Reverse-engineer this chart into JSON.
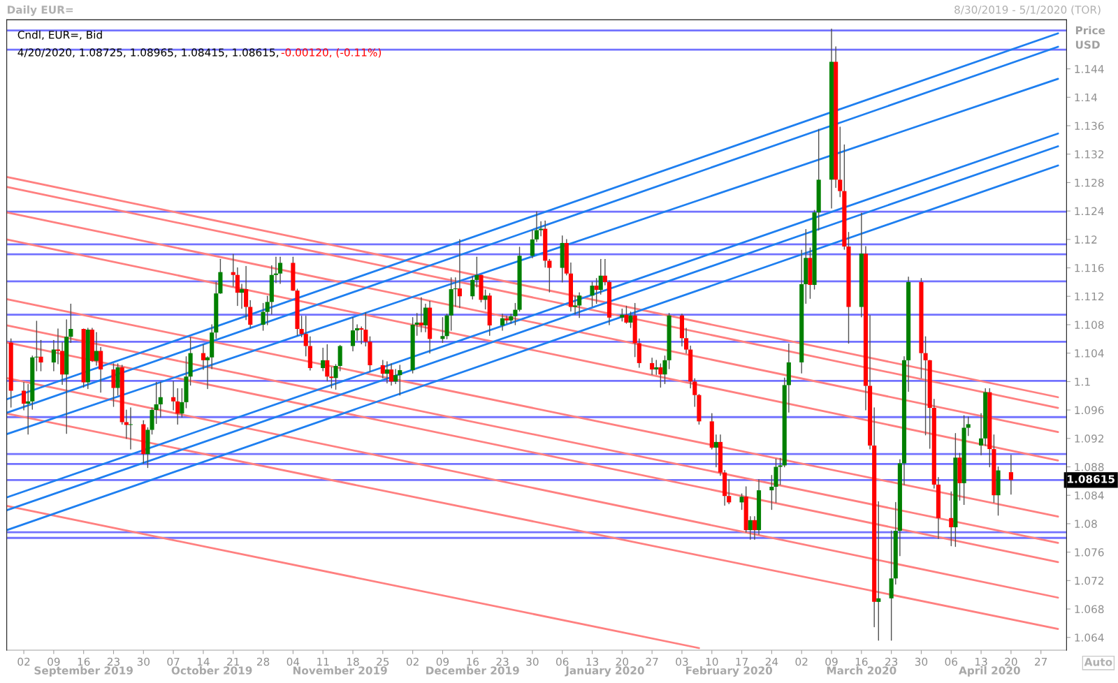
{
  "chart_data": {
    "type": "candlestick",
    "title": "Daily EUR=",
    "subtitle": "8/30/2019 - 5/1/2020 (TOR)",
    "ylabel": "Price\nUSD",
    "annotations": [
      "Cndl, EUR=, Bid",
      "4/20/2020, 1.08725, 1.08965, 1.08415, 1.08615, ",
      "-0.00120, (-0.11%)",
      "Auto"
    ],
    "x": [
      "2019-08-30",
      "2019-09-02",
      "2019-09-03",
      "2019-09-04",
      "2019-09-05",
      "2019-09-06",
      "2019-09-09",
      "2019-09-10",
      "2019-09-11",
      "2019-09-12",
      "2019-09-13",
      "2019-09-16",
      "2019-09-17",
      "2019-09-18",
      "2019-09-19",
      "2019-09-20",
      "2019-09-23",
      "2019-09-24",
      "2019-09-25",
      "2019-09-26",
      "2019-09-27",
      "2019-09-30",
      "2019-10-01",
      "2019-10-02",
      "2019-10-03",
      "2019-10-04",
      "2019-10-07",
      "2019-10-08",
      "2019-10-09",
      "2019-10-10",
      "2019-10-11",
      "2019-10-14",
      "2019-10-15",
      "2019-10-16",
      "2019-10-17",
      "2019-10-18",
      "2019-10-21",
      "2019-10-22",
      "2019-10-23",
      "2019-10-24",
      "2019-10-25",
      "2019-10-28",
      "2019-10-29",
      "2019-10-30",
      "2019-10-31",
      "2019-11-01",
      "2019-11-04",
      "2019-11-05",
      "2019-11-06",
      "2019-11-07",
      "2019-11-08",
      "2019-11-11",
      "2019-11-12",
      "2019-11-13",
      "2019-11-14",
      "2019-11-15",
      "2019-11-18",
      "2019-11-19",
      "2019-11-20",
      "2019-11-21",
      "2019-11-22",
      "2019-11-25",
      "2019-11-26",
      "2019-11-27",
      "2019-11-28",
      "2019-11-29",
      "2019-12-02",
      "2019-12-03",
      "2019-12-04",
      "2019-12-05",
      "2019-12-06",
      "2019-12-09",
      "2019-12-10",
      "2019-12-11",
      "2019-12-12",
      "2019-12-13",
      "2019-12-16",
      "2019-12-17",
      "2019-12-18",
      "2019-12-19",
      "2019-12-20",
      "2019-12-23",
      "2019-12-24",
      "2019-12-25",
      "2019-12-26",
      "2019-12-27",
      "2019-12-30",
      "2019-12-31",
      "2020-01-01",
      "2020-01-02",
      "2020-01-03",
      "2020-01-06",
      "2020-01-07",
      "2020-01-08",
      "2020-01-09",
      "2020-01-10",
      "2020-01-13",
      "2020-01-14",
      "2020-01-15",
      "2020-01-16",
      "2020-01-17",
      "2020-01-20",
      "2020-01-21",
      "2020-01-22",
      "2020-01-23",
      "2020-01-24",
      "2020-01-27",
      "2020-01-28",
      "2020-01-29",
      "2020-01-30",
      "2020-01-31",
      "2020-02-03",
      "2020-02-04",
      "2020-02-05",
      "2020-02-06",
      "2020-02-07",
      "2020-02-10",
      "2020-02-11",
      "2020-02-12",
      "2020-02-13",
      "2020-02-14",
      "2020-02-17",
      "2020-02-18",
      "2020-02-19",
      "2020-02-20",
      "2020-02-21",
      "2020-02-24",
      "2020-02-25",
      "2020-02-26",
      "2020-02-27",
      "2020-02-28",
      "2020-03-02",
      "2020-03-03",
      "2020-03-04",
      "2020-03-05",
      "2020-03-06",
      "2020-03-09",
      "2020-03-10",
      "2020-03-11",
      "2020-03-12",
      "2020-03-13",
      "2020-03-16",
      "2020-03-17",
      "2020-03-18",
      "2020-03-19",
      "2020-03-20",
      "2020-03-23",
      "2020-03-24",
      "2020-03-25",
      "2020-03-26",
      "2020-03-27",
      "2020-03-30",
      "2020-03-31",
      "2020-04-01",
      "2020-04-02",
      "2020-04-03",
      "2020-04-06",
      "2020-04-07",
      "2020-04-08",
      "2020-04-09",
      "2020-04-10",
      "2020-04-13",
      "2020-04-14",
      "2020-04-15",
      "2020-04-16",
      "2020-04-17",
      "2020-04-20"
    ],
    "ohlc": [
      [
        1.1055,
        1.106,
        1.0964,
        1.0987
      ],
      [
        1.0987,
        1.0999,
        1.096,
        1.0969
      ],
      [
        1.0969,
        1.0996,
        1.0926,
        1.0972
      ],
      [
        1.0972,
        1.1036,
        1.0961,
        1.1034
      ],
      [
        1.1034,
        1.1085,
        1.1015,
        1.1035
      ],
      [
        1.1035,
        1.1058,
        1.1015,
        1.1027
      ],
      [
        1.1027,
        1.1058,
        1.1015,
        1.1045
      ],
      [
        1.1045,
        1.1074,
        1.1025,
        1.1043
      ],
      [
        1.1043,
        1.1055,
        1.0996,
        1.101
      ],
      [
        1.101,
        1.1087,
        1.0927,
        1.1063
      ],
      [
        1.1063,
        1.1109,
        1.1055,
        1.1074
      ],
      [
        1.1074,
        1.1074,
        1.0992,
        1.0999
      ],
      [
        1.0999,
        1.1075,
        1.099,
        1.1073
      ],
      [
        1.1073,
        1.1075,
        1.1028,
        1.1029
      ],
      [
        1.1029,
        1.1069,
        1.1023,
        1.1043
      ],
      [
        1.1043,
        1.1048,
        1.0985,
        1.1017
      ],
      [
        1.1017,
        1.1025,
        1.0965,
        1.0991
      ],
      [
        1.0991,
        1.1025,
        1.0981,
        1.102
      ],
      [
        1.102,
        1.1023,
        1.094,
        1.0943
      ],
      [
        1.0943,
        1.096,
        1.092,
        1.0939
      ],
      [
        1.0939,
        1.0963,
        1.0905,
        1.094
      ],
      [
        1.094,
        1.0945,
        1.0885,
        1.0898
      ],
      [
        1.0898,
        1.0935,
        1.0879,
        1.0932
      ],
      [
        1.0932,
        1.0963,
        1.0926,
        1.096
      ],
      [
        1.096,
        1.0999,
        1.0941,
        1.0968
      ],
      [
        1.0968,
        1.0999,
        1.095,
        1.0978
      ],
      [
        1.0978,
        1.1,
        1.096,
        1.0972
      ],
      [
        1.0972,
        1.099,
        1.094,
        1.0955
      ],
      [
        1.0955,
        1.099,
        1.095,
        1.0971
      ],
      [
        1.0971,
        1.1035,
        1.0963,
        1.1007
      ],
      [
        1.1007,
        1.1062,
        1.0995,
        1.104
      ],
      [
        1.104,
        1.1052,
        1.1017,
        1.103
      ],
      [
        1.103,
        1.1035,
        1.099,
        1.1034
      ],
      [
        1.1034,
        1.108,
        1.1018,
        1.1069
      ],
      [
        1.1069,
        1.114,
        1.1061,
        1.1124
      ],
      [
        1.1124,
        1.1172,
        1.1124,
        1.1154
      ],
      [
        1.1154,
        1.1179,
        1.1134,
        1.115
      ],
      [
        1.115,
        1.116,
        1.1107,
        1.1125
      ],
      [
        1.1125,
        1.1137,
        1.1103,
        1.113
      ],
      [
        1.113,
        1.1162,
        1.1087,
        1.1105
      ],
      [
        1.1105,
        1.1114,
        1.1075,
        1.108
      ],
      [
        1.108,
        1.111,
        1.1072,
        1.1098
      ],
      [
        1.1098,
        1.112,
        1.108,
        1.1112
      ],
      [
        1.1112,
        1.1163,
        1.1095,
        1.115
      ],
      [
        1.115,
        1.1175,
        1.1139,
        1.1152
      ],
      [
        1.1152,
        1.1175,
        1.1138,
        1.1167
      ],
      [
        1.1167,
        1.1175,
        1.1128,
        1.1128
      ],
      [
        1.1128,
        1.113,
        1.1065,
        1.1074
      ],
      [
        1.1074,
        1.1092,
        1.1063,
        1.1067
      ],
      [
        1.1067,
        1.1092,
        1.1036,
        1.105
      ],
      [
        1.105,
        1.1063,
        1.1016,
        1.1019
      ],
      [
        1.1019,
        1.1047,
        1.1015,
        1.103
      ],
      [
        1.103,
        1.1052,
        1.1001,
        1.1007
      ],
      [
        1.1007,
        1.102,
        1.0991,
        1.1005
      ],
      [
        1.1005,
        1.1024,
        1.0989,
        1.1022
      ],
      [
        1.1022,
        1.1051,
        1.1015,
        1.105
      ],
      [
        1.105,
        1.109,
        1.1043,
        1.1072
      ],
      [
        1.1072,
        1.108,
        1.1058,
        1.1075
      ],
      [
        1.1075,
        1.1077,
        1.1053,
        1.1073
      ],
      [
        1.1073,
        1.1097,
        1.105,
        1.1056
      ],
      [
        1.1056,
        1.1063,
        1.1014,
        1.1023
      ],
      [
        1.1023,
        1.103,
        1.1005,
        1.1011
      ],
      [
        1.1011,
        1.1028,
        1.0998,
        1.1017
      ],
      [
        1.1017,
        1.1025,
        1.0995,
        1.1
      ],
      [
        1.1,
        1.1017,
        1.0997,
        1.1009
      ],
      [
        1.1009,
        1.1023,
        1.0981,
        1.1016
      ],
      [
        1.1016,
        1.109,
        1.1012,
        1.108
      ],
      [
        1.108,
        1.1096,
        1.1065,
        1.1083
      ],
      [
        1.1083,
        1.1118,
        1.107,
        1.1079
      ],
      [
        1.1079,
        1.1109,
        1.107,
        1.1104
      ],
      [
        1.1104,
        1.1113,
        1.104,
        1.106
      ],
      [
        1.106,
        1.109,
        1.1055,
        1.1064
      ],
      [
        1.1064,
        1.1095,
        1.106,
        1.1093
      ],
      [
        1.1093,
        1.1146,
        1.1072,
        1.113
      ],
      [
        1.113,
        1.1146,
        1.1106,
        1.1131
      ],
      [
        1.1131,
        1.12,
        1.1104,
        1.112
      ],
      [
        1.112,
        1.1148,
        1.1116,
        1.1143
      ],
      [
        1.1143,
        1.1175,
        1.1133,
        1.115
      ],
      [
        1.115,
        1.115,
        1.1112,
        1.1115
      ],
      [
        1.1115,
        1.1129,
        1.1102,
        1.1121
      ],
      [
        1.1121,
        1.1124,
        1.1065,
        1.1079
      ],
      [
        1.1079,
        1.1095,
        1.1072,
        1.1089
      ],
      [
        1.1089,
        1.1092,
        1.1082,
        1.1086
      ],
      [
        1.1086,
        1.1095,
        1.1082,
        1.1092
      ],
      [
        1.1092,
        1.111,
        1.108,
        1.1101
      ],
      [
        1.1101,
        1.1189,
        1.1099,
        1.1177
      ],
      [
        1.1177,
        1.1213,
        1.1174,
        1.12
      ],
      [
        1.12,
        1.1239,
        1.1197,
        1.1213
      ],
      [
        1.1213,
        1.1225,
        1.1205,
        1.1215
      ],
      [
        1.1215,
        1.1226,
        1.1161,
        1.117
      ],
      [
        1.117,
        1.1172,
        1.1126,
        1.116
      ],
      [
        1.116,
        1.1205,
        1.114,
        1.1195
      ],
      [
        1.1195,
        1.12,
        1.115,
        1.1152
      ],
      [
        1.1152,
        1.1167,
        1.1099,
        1.1105
      ],
      [
        1.1105,
        1.112,
        1.1095,
        1.1107
      ],
      [
        1.1107,
        1.1125,
        1.109,
        1.1121
      ],
      [
        1.1121,
        1.114,
        1.1106,
        1.1135
      ],
      [
        1.1135,
        1.1145,
        1.111,
        1.1129
      ],
      [
        1.1129,
        1.1172,
        1.1123,
        1.1149
      ],
      [
        1.1149,
        1.1172,
        1.1136,
        1.114
      ],
      [
        1.114,
        1.1142,
        1.108,
        1.109
      ],
      [
        1.109,
        1.1102,
        1.1085,
        1.1094
      ],
      [
        1.1094,
        1.1106,
        1.1082,
        1.1083
      ],
      [
        1.1083,
        1.1098,
        1.1076,
        1.1093
      ],
      [
        1.1093,
        1.111,
        1.1035,
        1.1054
      ],
      [
        1.1054,
        1.106,
        1.102,
        1.1026
      ],
      [
        1.1026,
        1.1033,
        1.101,
        1.1017
      ],
      [
        1.1017,
        1.103,
        1.101,
        1.102
      ],
      [
        1.102,
        1.1025,
        1.0992,
        1.101
      ],
      [
        1.101,
        1.1036,
        1.0997,
        1.103
      ],
      [
        1.103,
        1.1096,
        1.1018,
        1.1093
      ],
      [
        1.1093,
        1.1095,
        1.105,
        1.1061
      ],
      [
        1.1061,
        1.1075,
        1.104,
        1.1045
      ],
      [
        1.1045,
        1.105,
        1.0991,
        1.1
      ],
      [
        1.1,
        1.1004,
        1.0965,
        1.0981
      ],
      [
        1.0981,
        1.0982,
        1.094,
        1.0944
      ],
      [
        1.0944,
        1.0955,
        1.0905,
        1.0907
      ],
      [
        1.0907,
        1.0925,
        1.088,
        1.0915
      ],
      [
        1.0915,
        1.0925,
        1.0868,
        1.0872
      ],
      [
        1.0872,
        1.0875,
        1.0826,
        1.0839
      ],
      [
        1.0839,
        1.0862,
        1.0828,
        1.083
      ],
      [
        1.083,
        1.0842,
        1.082,
        1.0838
      ],
      [
        1.0838,
        1.0852,
        1.0788,
        1.0791
      ],
      [
        1.0791,
        1.081,
        1.0778,
        1.0805
      ],
      [
        1.0805,
        1.081,
        1.0778,
        1.0791
      ],
      [
        1.0791,
        1.0862,
        1.0785,
        1.0847
      ],
      [
        1.0847,
        1.0868,
        1.082,
        1.0852
      ],
      [
        1.0852,
        1.0891,
        1.083,
        1.088
      ],
      [
        1.088,
        1.0892,
        1.0855,
        1.0882
      ],
      [
        1.0882,
        1.1005,
        1.088,
        1.0995
      ],
      [
        1.0995,
        1.1053,
        1.0957,
        1.1027
      ],
      [
        1.1027,
        1.1185,
        1.1012,
        1.1137
      ],
      [
        1.1137,
        1.1214,
        1.111,
        1.1174
      ],
      [
        1.1174,
        1.1188,
        1.1117,
        1.1136
      ],
      [
        1.1136,
        1.1241,
        1.113,
        1.1238
      ],
      [
        1.1238,
        1.1355,
        1.1213,
        1.1284
      ],
      [
        1.1284,
        1.1496,
        1.1244,
        1.145
      ],
      [
        1.145,
        1.1471,
        1.1273,
        1.1284
      ],
      [
        1.1284,
        1.1358,
        1.126,
        1.1268
      ],
      [
        1.1268,
        1.1333,
        1.1186,
        1.119
      ],
      [
        1.119,
        1.121,
        1.1054,
        1.1105
      ],
      [
        1.1105,
        1.1237,
        1.1091,
        1.118
      ],
      [
        1.118,
        1.119,
        1.096,
        1.0994
      ],
      [
        1.0994,
        1.1093,
        1.0905,
        1.091
      ],
      [
        1.091,
        1.0963,
        1.0655,
        1.069
      ],
      [
        1.069,
        1.0831,
        1.0636,
        1.0695
      ],
      [
        1.0695,
        1.079,
        1.0636,
        1.0723
      ],
      [
        1.0723,
        1.083,
        1.0715,
        1.079
      ],
      [
        1.079,
        1.089,
        1.0755,
        1.0885
      ],
      [
        1.0885,
        1.1035,
        1.0855,
        1.103
      ],
      [
        1.103,
        1.1147,
        1.0986,
        1.114
      ],
      [
        1.114,
        1.1145,
        1.1005,
        1.104
      ],
      [
        1.104,
        1.1063,
        1.0925,
        1.103
      ],
      [
        1.103,
        1.103,
        1.0906,
        1.0963
      ],
      [
        1.0963,
        1.0975,
        1.085,
        1.0855
      ],
      [
        1.0855,
        1.0865,
        1.0779,
        1.0808
      ],
      [
        1.0808,
        1.0845,
        1.0769,
        1.0795
      ],
      [
        1.0795,
        1.0927,
        1.0768,
        1.0893
      ],
      [
        1.0893,
        1.0899,
        1.0833,
        1.0857
      ],
      [
        1.0857,
        1.0952,
        1.0827,
        1.0935
      ],
      [
        1.0935,
        1.095,
        1.0924,
        1.094
      ],
      [
        1.091,
        1.0955,
        1.0897,
        1.092
      ],
      [
        1.092,
        1.099,
        1.091,
        1.0985
      ],
      [
        1.0985,
        1.099,
        1.088,
        1.0905
      ],
      [
        1.0905,
        1.0925,
        1.083,
        1.084
      ],
      [
        1.084,
        1.088,
        1.0812,
        1.0875
      ],
      [
        1.08725,
        1.08965,
        1.08415,
        1.08615
      ]
    ],
    "series": [
      {
        "type": "line",
        "color": "#ff8080",
        "x": [
          "2019-08-29",
          "2020-05-01"
        ],
        "values": [
          1.1288,
          1.0978
        ]
      },
      {
        "type": "line",
        "color": "#ff8080",
        "x": [
          "2019-08-29",
          "2020-05-01"
        ],
        "values": [
          1.1274,
          1.0963
        ]
      },
      {
        "type": "line",
        "color": "#ff8080",
        "x": [
          "2019-08-29",
          "2020-05-01"
        ],
        "values": [
          1.1238,
          1.0929
        ]
      },
      {
        "type": "line",
        "color": "#ff8080",
        "x": [
          "2019-08-29",
          "2020-05-01"
        ],
        "values": [
          1.12,
          1.0889
        ]
      },
      {
        "type": "line",
        "color": "#ff8080",
        "x": [
          "2019-08-29",
          "2020-05-01"
        ],
        "values": [
          1.1116,
          1.081
        ]
      },
      {
        "type": "line",
        "color": "#ff8080",
        "x": [
          "2019-08-29",
          "2020-05-01"
        ],
        "values": [
          1.1079,
          1.0773
        ]
      },
      {
        "type": "line",
        "color": "#ff8080",
        "x": [
          "2019-08-29",
          "2020-05-01"
        ],
        "values": [
          1.1055,
          1.0746
        ]
      },
      {
        "type": "line",
        "color": "#ff8080",
        "x": [
          "2019-08-29",
          "2020-05-01"
        ],
        "values": [
          1.1005,
          1.0696
        ]
      },
      {
        "type": "line",
        "color": "#ff8080",
        "x": [
          "2019-08-29",
          "2020-05-01"
        ],
        "values": [
          1.0955,
          1.0652
        ]
      },
      {
        "type": "line",
        "color": "#ff8080",
        "x": [
          "2019-08-29",
          "2020-02-07"
        ],
        "values": [
          1.0825,
          1.0625
        ]
      },
      {
        "type": "line",
        "color": "#1e7ff0",
        "x": [
          "2019-08-29",
          "2020-05-01"
        ],
        "values": [
          1.0975,
          1.149
        ]
      },
      {
        "type": "line",
        "color": "#1e7ff0",
        "x": [
          "2019-08-29",
          "2020-05-01"
        ],
        "values": [
          1.0956,
          1.1471
        ]
      },
      {
        "type": "line",
        "color": "#1e7ff0",
        "x": [
          "2019-08-29",
          "2020-05-01"
        ],
        "values": [
          1.0926,
          1.1426
        ]
      },
      {
        "type": "line",
        "color": "#1e7ff0",
        "x": [
          "2019-08-29",
          "2020-05-01"
        ],
        "values": [
          1.0837,
          1.1349
        ]
      },
      {
        "type": "line",
        "color": "#1e7ff0",
        "x": [
          "2019-08-29",
          "2020-05-01"
        ],
        "values": [
          1.0819,
          1.1331
        ]
      },
      {
        "type": "line",
        "color": "#1e7ff0",
        "x": [
          "2019-08-29",
          "2020-05-01"
        ],
        "values": [
          1.0791,
          1.1304
        ]
      }
    ],
    "ref_lines": [
      {
        "axis": "y",
        "value": 1.1494,
        "color": "#7272ff"
      },
      {
        "axis": "y",
        "value": 1.1467,
        "color": "#7272ff"
      },
      {
        "axis": "y",
        "value": 1.1239,
        "color": "#7272ff"
      },
      {
        "axis": "y",
        "value": 1.1193,
        "color": "#7272ff"
      },
      {
        "axis": "y",
        "value": 1.1179,
        "color": "#7272ff"
      },
      {
        "axis": "y",
        "value": 1.1141,
        "color": "#7272ff"
      },
      {
        "axis": "y",
        "value": 1.1094,
        "color": "#7272ff"
      },
      {
        "axis": "y",
        "value": 1.1056,
        "color": "#7272ff"
      },
      {
        "axis": "y",
        "value": 1.1001,
        "color": "#7272ff"
      },
      {
        "axis": "y",
        "value": 1.095,
        "color": "#7272ff"
      },
      {
        "axis": "y",
        "value": 1.0898,
        "color": "#7272ff"
      },
      {
        "axis": "y",
        "value": 1.0884,
        "color": "#7272ff"
      },
      {
        "axis": "y",
        "value": 1.08615,
        "color": "#7272ff",
        "label": "1.08615"
      },
      {
        "axis": "y",
        "value": 1.0788,
        "color": "#7272ff"
      },
      {
        "axis": "y",
        "value": 1.078,
        "color": "#7272ff"
      }
    ],
    "xlim": [
      "2019-08-29",
      "2020-05-03"
    ],
    "ylim": [
      1.0622,
      1.1509
    ],
    "xticks": [
      {
        "value": "2019-09-02",
        "label": "02"
      },
      {
        "value": "2019-09-09",
        "label": "09"
      },
      {
        "value": "2019-09-16",
        "label": "16"
      },
      {
        "value": "2019-09-23",
        "label": "23"
      },
      {
        "value": "2019-09-30",
        "label": "30"
      },
      {
        "value": "2019-10-07",
        "label": "07"
      },
      {
        "value": "2019-10-14",
        "label": "14"
      },
      {
        "value": "2019-10-21",
        "label": "21"
      },
      {
        "value": "2019-10-28",
        "label": "28"
      },
      {
        "value": "2019-11-04",
        "label": "04"
      },
      {
        "value": "2019-11-11",
        "label": "11"
      },
      {
        "value": "2019-11-18",
        "label": "18"
      },
      {
        "value": "2019-11-25",
        "label": "25"
      },
      {
        "value": "2019-12-02",
        "label": "02"
      },
      {
        "value": "2019-12-09",
        "label": "09"
      },
      {
        "value": "2019-12-16",
        "label": "16"
      },
      {
        "value": "2019-12-23",
        "label": "23"
      },
      {
        "value": "2019-12-30",
        "label": "30"
      },
      {
        "value": "2020-01-06",
        "label": "06"
      },
      {
        "value": "2020-01-13",
        "label": "13"
      },
      {
        "value": "2020-01-20",
        "label": "20"
      },
      {
        "value": "2020-01-27",
        "label": "27"
      },
      {
        "value": "2020-02-03",
        "label": "03"
      },
      {
        "value": "2020-02-10",
        "label": "10"
      },
      {
        "value": "2020-02-17",
        "label": "17"
      },
      {
        "value": "2020-02-24",
        "label": "24"
      },
      {
        "value": "2020-03-02",
        "label": "02"
      },
      {
        "value": "2020-03-09",
        "label": "09"
      },
      {
        "value": "2020-03-16",
        "label": "16"
      },
      {
        "value": "2020-03-23",
        "label": "23"
      },
      {
        "value": "2020-03-30",
        "label": "30"
      },
      {
        "value": "2020-04-06",
        "label": "06"
      },
      {
        "value": "2020-04-13",
        "label": "13"
      },
      {
        "value": "2020-04-20",
        "label": "20"
      },
      {
        "value": "2020-04-27",
        "label": "27"
      }
    ],
    "x2lim": [
      "2019-08-29",
      "2020-05-03"
    ],
    "x2ticks": [
      {
        "value": "2019-09-16",
        "label": "September 2019"
      },
      {
        "value": "2019-10-16",
        "label": "October 2019"
      },
      {
        "value": "2019-11-15",
        "label": "November 2019"
      },
      {
        "value": "2019-12-16",
        "label": "December 2019"
      },
      {
        "value": "2020-01-16",
        "label": "January 2020"
      },
      {
        "value": "2020-02-14",
        "label": "February 2020"
      },
      {
        "value": "2020-03-16",
        "label": "March 2020"
      },
      {
        "value": "2020-04-15",
        "label": "April 2020"
      }
    ],
    "yticks": [
      1.064,
      1.068,
      1.072,
      1.076,
      1.08,
      1.084,
      1.088,
      1.092,
      1.096,
      1.1,
      1.104,
      1.108,
      1.112,
      1.116,
      1.12,
      1.124,
      1.128,
      1.132,
      1.136,
      1.14,
      1.144
    ],
    "grid": false,
    "legend": false
  }
}
